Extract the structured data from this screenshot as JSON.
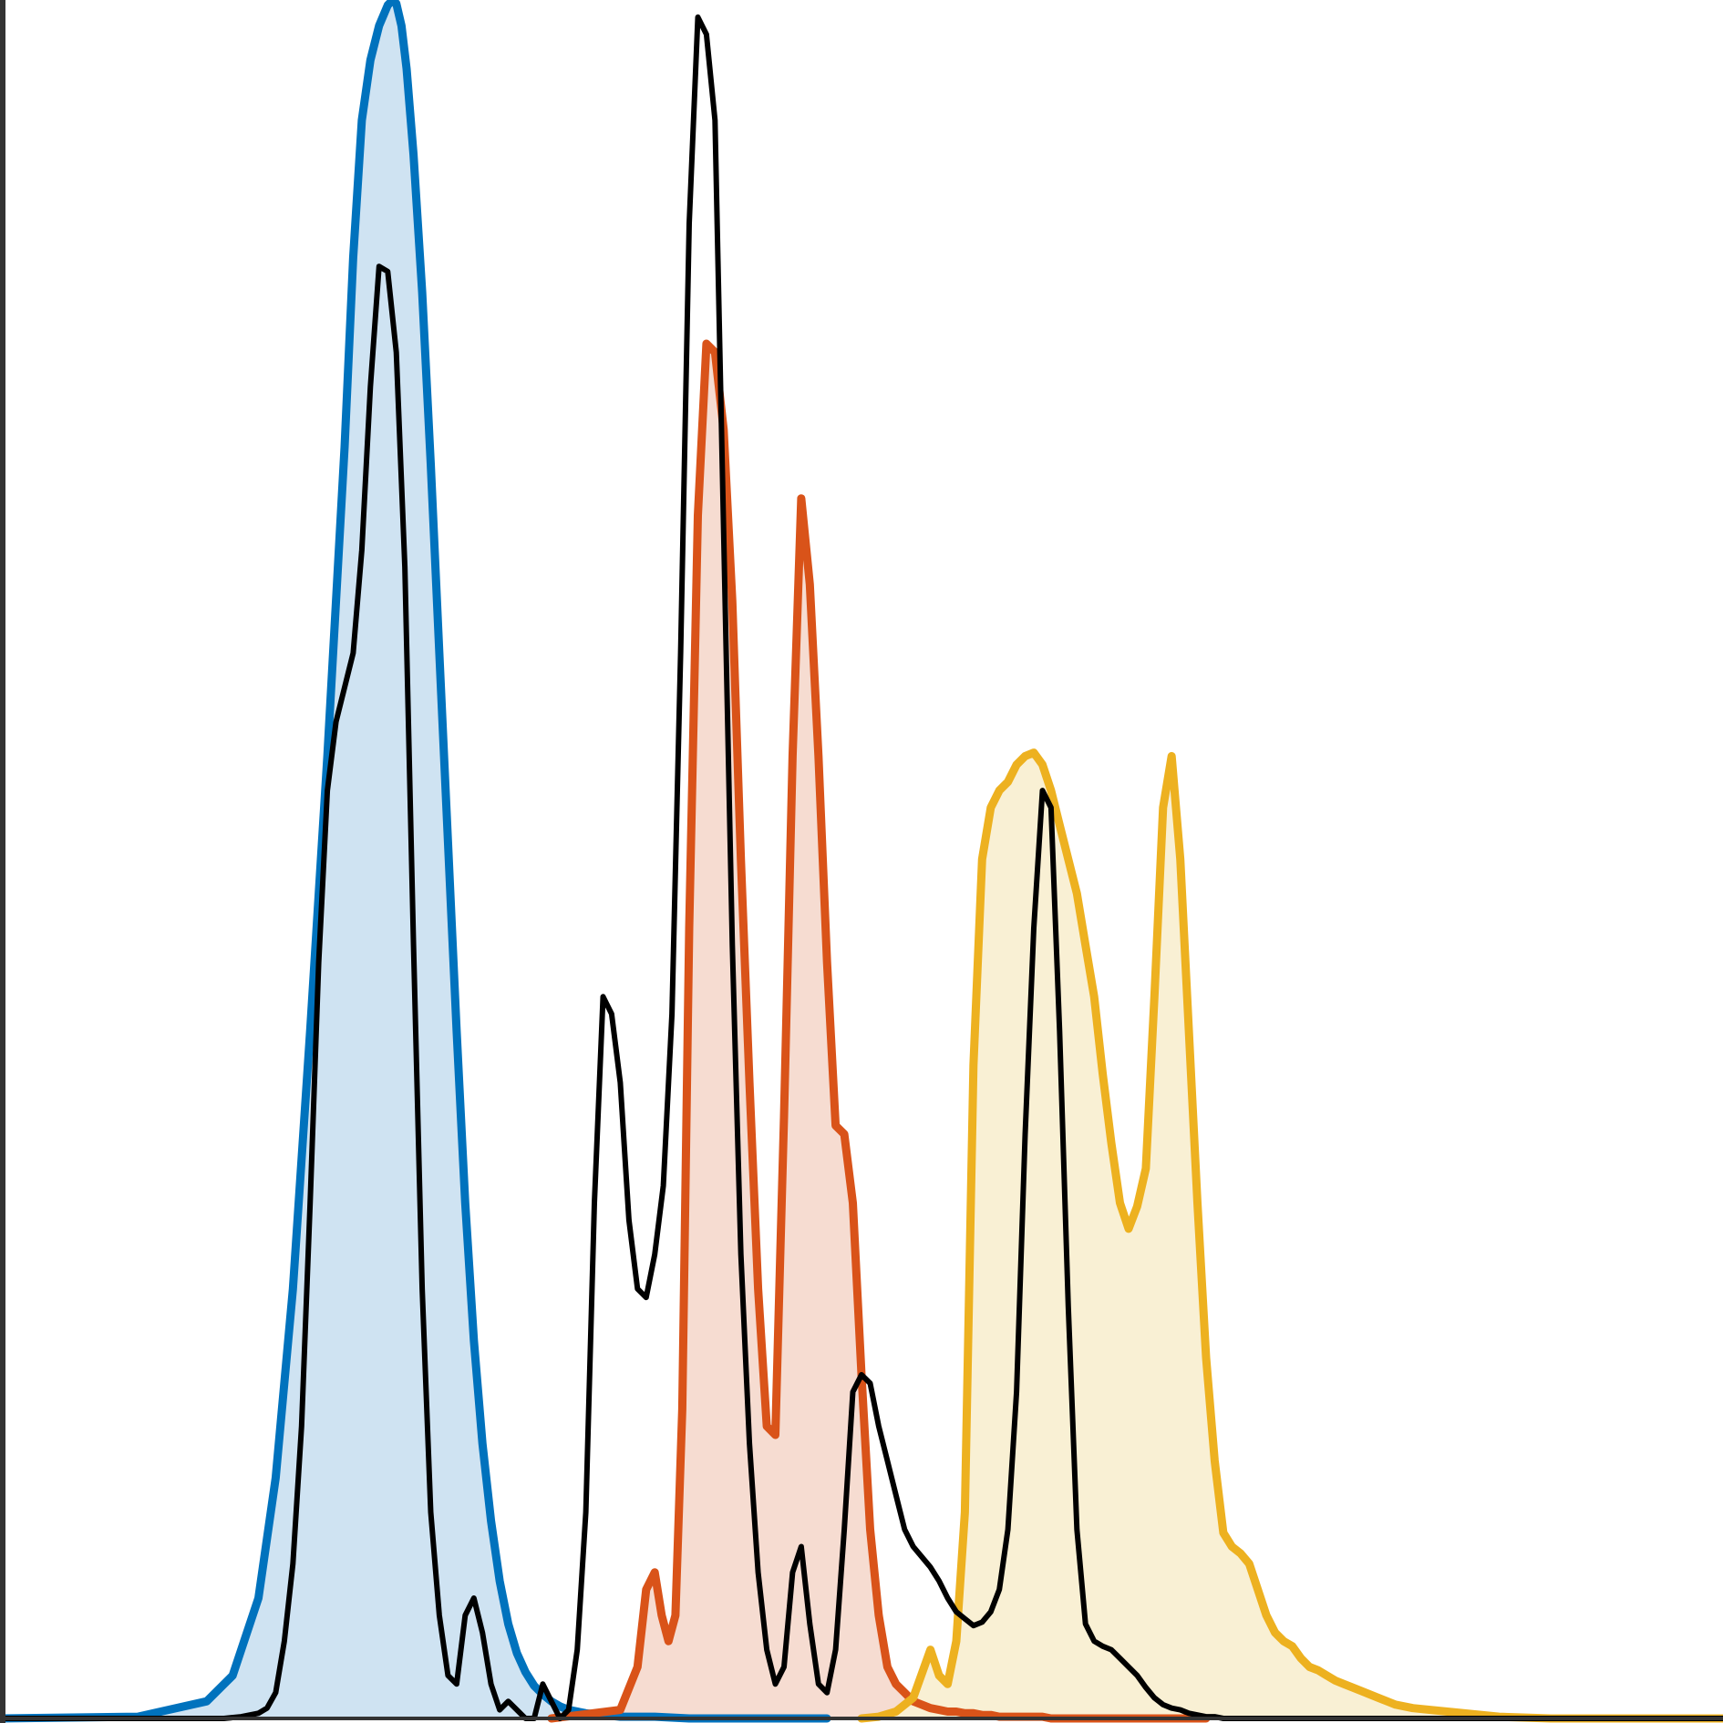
{
  "chart_data": {
    "type": "area",
    "title": "",
    "xlabel": "",
    "ylabel": "",
    "xlim": [
      0,
      1000
    ],
    "ylim": [
      0,
      1000
    ],
    "grid": false,
    "legend": "none",
    "series": [
      {
        "color": "#0072bd",
        "fill": "#cce2f1",
        "x": [
          0,
          80,
          120,
          135,
          150,
          160,
          170,
          180,
          190,
          200,
          205,
          210,
          215,
          220,
          225,
          228,
          230,
          233,
          236,
          240,
          245,
          250,
          255,
          260,
          265,
          270,
          275,
          280,
          285,
          290,
          295,
          300,
          305,
          310,
          315,
          320,
          325,
          330,
          340,
          350,
          360,
          380,
          400,
          440,
          480
        ],
        "y": [
          0,
          1,
          10,
          25,
          70,
          140,
          250,
          400,
          560,
          740,
          850,
          930,
          965,
          985,
          997,
          1000,
          998,
          985,
          960,
          910,
          830,
          730,
          620,
          510,
          400,
          300,
          220,
          160,
          115,
          80,
          55,
          38,
          27,
          19,
          14,
          10,
          7,
          5,
          3,
          2,
          1,
          1,
          0,
          0,
          0
        ]
      },
      {
        "color": "#d95319",
        "fill": "#f6dacf",
        "x": [
          320,
          360,
          370,
          375,
          380,
          384,
          388,
          392,
          396,
          400,
          405,
          410,
          415,
          420,
          425,
          430,
          435,
          440,
          445,
          450,
          455,
          460,
          465,
          470,
          475,
          480,
          485,
          490,
          495,
          500,
          505,
          510,
          515,
          520,
          525,
          530,
          535,
          540,
          545,
          550,
          555,
          560,
          565,
          570,
          575,
          580,
          585,
          590,
          595,
          600,
          605,
          610,
          620,
          640,
          660,
          700
        ],
        "y": [
          0,
          5,
          30,
          75,
          85,
          60,
          45,
          60,
          180,
          460,
          700,
          800,
          795,
          750,
          650,
          500,
          370,
          250,
          170,
          165,
          350,
          560,
          710,
          660,
          560,
          440,
          345,
          340,
          300,
          200,
          110,
          60,
          30,
          20,
          15,
          10,
          8,
          6,
          5,
          4,
          4,
          3,
          3,
          2,
          2,
          1,
          1,
          1,
          1,
          1,
          1,
          0,
          0,
          0,
          0,
          0
        ]
      },
      {
        "color": "#edb120",
        "fill": "#f9efd2",
        "x": [
          500,
          510,
          520,
          530,
          540,
          545,
          550,
          555,
          560,
          565,
          570,
          575,
          580,
          585,
          590,
          595,
          600,
          605,
          610,
          615,
          620,
          625,
          630,
          635,
          640,
          645,
          650,
          655,
          660,
          665,
          670,
          675,
          680,
          685,
          690,
          695,
          700,
          705,
          710,
          715,
          720,
          725,
          730,
          735,
          740,
          745,
          750,
          755,
          760,
          765,
          770,
          775,
          780,
          785,
          790,
          800,
          810,
          820,
          840,
          870,
          900,
          1000
        ],
        "y": [
          0,
          1,
          4,
          12,
          40,
          25,
          20,
          45,
          120,
          380,
          500,
          530,
          540,
          545,
          555,
          560,
          562,
          555,
          540,
          520,
          500,
          480,
          450,
          420,
          375,
          335,
          300,
          285,
          298,
          320,
          420,
          530,
          560,
          500,
          400,
          300,
          210,
          150,
          108,
          100,
          96,
          90,
          75,
          60,
          50,
          45,
          42,
          35,
          30,
          28,
          25,
          22,
          20,
          18,
          16,
          12,
          8,
          6,
          4,
          1,
          0,
          0
        ]
      }
    ],
    "overlays": [
      {
        "color": "#000000",
        "x": [
          0,
          130,
          140,
          150,
          155,
          160,
          165,
          170,
          175,
          180,
          185,
          190,
          195,
          200,
          205,
          210,
          215,
          220,
          225,
          230,
          235,
          240,
          245,
          250,
          255,
          260,
          265,
          270,
          275,
          280,
          285,
          290,
          295,
          300,
          305,
          310,
          315,
          320,
          325,
          330,
          335,
          340,
          345,
          350,
          355,
          360,
          365,
          370,
          375,
          380,
          385,
          390,
          395,
          400,
          405,
          410,
          415,
          420,
          425,
          430,
          435,
          440,
          445,
          450,
          455,
          460,
          465,
          470,
          475,
          480,
          485,
          490,
          495,
          500,
          505,
          510,
          515,
          520,
          525,
          530,
          535,
          540,
          545,
          550,
          555,
          560,
          565,
          570,
          575,
          580,
          585,
          590,
          595,
          600,
          605,
          610,
          615,
          620,
          625,
          630,
          635,
          640,
          645,
          650,
          655,
          660,
          665,
          670,
          675,
          680,
          685,
          690,
          695,
          700,
          705,
          710,
          715,
          720,
          725,
          730,
          735,
          740,
          745,
          750,
          755,
          760,
          765,
          770,
          775,
          780,
          785,
          790,
          795,
          800,
          805,
          810,
          815,
          820,
          825,
          830,
          835,
          840,
          845,
          850,
          855,
          860,
          870,
          880,
          890,
          900,
          920,
          940,
          960,
          980,
          1000
        ],
        "y": [
          0,
          0,
          1,
          3,
          6,
          15,
          45,
          90,
          170,
          300,
          440,
          540,
          580,
          600,
          620,
          680,
          775,
          845,
          842,
          795,
          670,
          450,
          250,
          120,
          60,
          25,
          20,
          60,
          70,
          50,
          20,
          5,
          10,
          5,
          0,
          0,
          20,
          10,
          0,
          5,
          40,
          120,
          300,
          420,
          410,
          370,
          290,
          250,
          245,
          270,
          310,
          410,
          620,
          870,
          990,
          980,
          930,
          690,
          450,
          270,
          160,
          85,
          40,
          20,
          30,
          85,
          100,
          55,
          20,
          15,
          40,
          110,
          190,
          200,
          195,
          170,
          150,
          130,
          110,
          100,
          94,
          88,
          80,
          70,
          62,
          58,
          54,
          56,
          62,
          75,
          110,
          190,
          340,
          460,
          540,
          530,
          400,
          240,
          110,
          55,
          45,
          42,
          40,
          35,
          30,
          25,
          18,
          12,
          8,
          6,
          5,
          3,
          2,
          1,
          1,
          0,
          0,
          0,
          0,
          0,
          0,
          0,
          0,
          0,
          0,
          0,
          0,
          0,
          0,
          0,
          0,
          0,
          0,
          0,
          0,
          0,
          0,
          0,
          0,
          0,
          0,
          0,
          0,
          0,
          0,
          0,
          0,
          0,
          0,
          0,
          0,
          0,
          0,
          0,
          0
        ]
      }
    ]
  }
}
